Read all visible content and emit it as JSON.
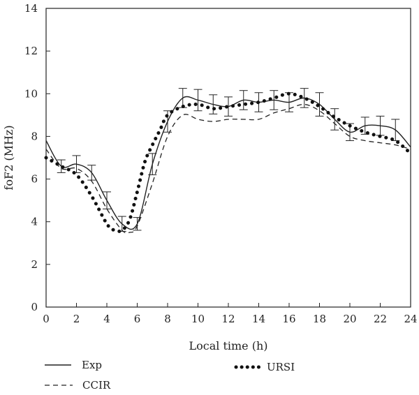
{
  "chart_data": {
    "type": "line",
    "xlabel": "Local time (h)",
    "ylabel": "foF2 (MHz)",
    "xlim": [
      0,
      24
    ],
    "ylim": [
      0,
      14
    ],
    "xticks": [
      0,
      2,
      4,
      6,
      8,
      10,
      12,
      14,
      16,
      18,
      20,
      22,
      24
    ],
    "yticks": [
      0,
      2,
      4,
      6,
      8,
      10,
      12,
      14
    ],
    "grid": false,
    "legend_position": "bottom-left",
    "series": [
      {
        "name": "Exp",
        "style": "solid",
        "x": [
          0,
          1,
          2,
          3,
          4,
          5,
          6,
          7,
          8,
          9,
          10,
          11,
          12,
          13,
          14,
          15,
          16,
          17,
          18,
          19,
          20,
          21,
          22,
          23,
          24
        ],
        "y": [
          7.8,
          6.6,
          6.7,
          6.3,
          5.0,
          3.9,
          3.9,
          6.7,
          8.7,
          9.8,
          9.7,
          9.5,
          9.4,
          9.7,
          9.6,
          9.7,
          9.6,
          9.8,
          9.5,
          8.8,
          8.2,
          8.5,
          8.5,
          8.3,
          7.5
        ],
        "error": [
          null,
          0.3,
          0.4,
          0.35,
          0.4,
          0.35,
          0.3,
          0.5,
          0.5,
          0.45,
          0.5,
          0.45,
          0.45,
          0.45,
          0.45,
          0.45,
          0.45,
          0.45,
          0.55,
          0.5,
          0.4,
          0.4,
          0.45,
          0.5,
          null
        ]
      },
      {
        "name": "CCIR",
        "style": "dashed",
        "x": [
          0,
          1,
          2,
          3,
          4,
          5,
          5.5,
          6,
          7,
          8,
          9,
          10,
          11,
          12,
          13,
          14,
          15,
          16,
          17,
          18,
          19,
          20,
          21,
          22,
          23,
          24
        ],
        "y": [
          7.4,
          6.5,
          6.5,
          5.9,
          4.6,
          3.6,
          3.5,
          3.8,
          5.8,
          8.0,
          9.0,
          8.8,
          8.7,
          8.8,
          8.8,
          8.8,
          9.1,
          9.3,
          9.5,
          9.2,
          8.6,
          8.0,
          7.8,
          7.7,
          7.6,
          7.4
        ]
      },
      {
        "name": "URSI",
        "style": "dotted",
        "x": [
          0,
          1,
          2,
          3,
          4,
          4.5,
          5,
          5.5,
          6,
          6.5,
          7,
          7.5,
          8,
          9,
          10,
          11,
          12,
          13,
          14,
          15,
          16,
          17,
          18,
          19,
          20,
          21,
          22,
          23,
          24
        ],
        "y": [
          7.0,
          6.6,
          6.2,
          5.2,
          3.9,
          3.6,
          3.6,
          4.1,
          5.4,
          6.8,
          7.6,
          8.3,
          9.0,
          9.4,
          9.5,
          9.3,
          9.4,
          9.5,
          9.6,
          9.8,
          10.0,
          9.8,
          9.4,
          8.9,
          8.5,
          8.2,
          8.0,
          7.8,
          7.2
        ]
      }
    ]
  }
}
